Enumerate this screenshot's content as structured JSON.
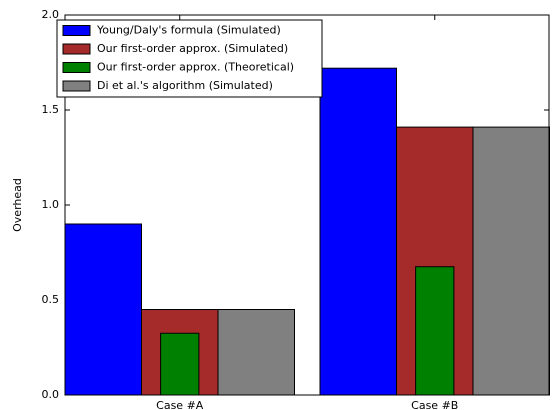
{
  "chart_data": {
    "type": "bar",
    "y_label": "Overhead",
    "categories": [
      "Case #A",
      "Case #B"
    ],
    "series": [
      {
        "name": "Young/Daly's formula (Simulated)",
        "color": "#0000ff",
        "values": [
          0.9,
          1.72
        ]
      },
      {
        "name": "Our first-order approx. (Simulated)",
        "color": "#a52a2a",
        "values": [
          0.45,
          1.41
        ]
      },
      {
        "name": "Our first-order approx. (Theoretical)",
        "color": "#008000",
        "values": [
          0.325,
          0.675
        ]
      },
      {
        "name": "Di et al.'s algorithm (Simulated)",
        "color": "#808080",
        "values": [
          0.45,
          1.41
        ]
      }
    ],
    "ylim": [
      0,
      2
    ],
    "yticks": [
      {
        "value": 0,
        "label": "0.0"
      },
      0.5,
      {
        "value": 1,
        "label": "1.0"
      },
      1.5,
      {
        "value": 2,
        "label": "2.0"
      }
    ],
    "legend": "upper left"
  }
}
